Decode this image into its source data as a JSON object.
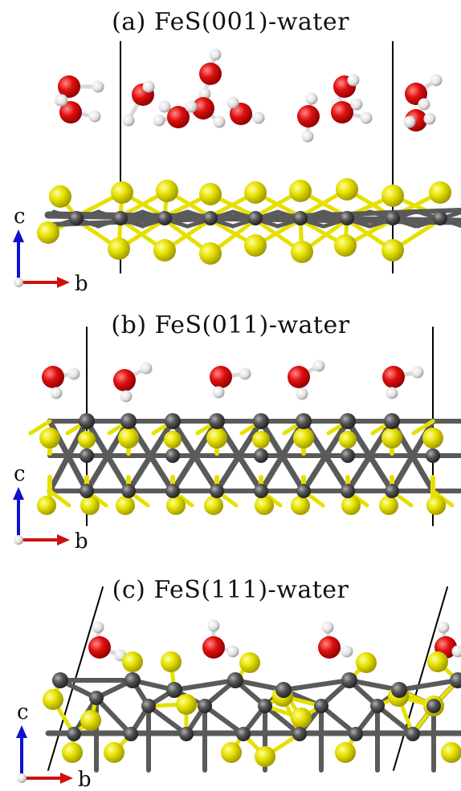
{
  "panels": [
    {
      "id": "a",
      "title": "(a) FeS(001)-water",
      "axis_up": "c",
      "axis_right": "b"
    },
    {
      "id": "b",
      "title": "(b) FeS(011)-water",
      "axis_up": "c",
      "axis_right": "b"
    },
    {
      "id": "c",
      "title": "(c) FeS(111)-water",
      "axis_up": "c",
      "axis_right": "b"
    }
  ],
  "colors": {
    "oxygen": "#e01010",
    "hydrogen": "#ededed",
    "sulfur": "#e6e000",
    "iron": "#555555",
    "bond": "#5a5a5a",
    "axis_c": "#1010d0",
    "axis_b": "#d01010"
  }
}
